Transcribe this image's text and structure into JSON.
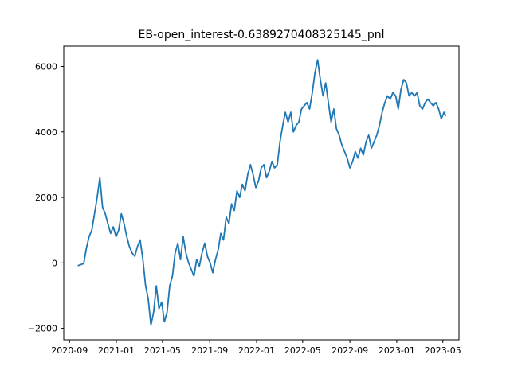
{
  "chart_data": {
    "type": "line",
    "title": "EB-open_interest-0.6389270408325145_pnl",
    "xlabel": "",
    "ylabel": "",
    "x_type": "date",
    "xlim": [
      "2020-08-17",
      "2023-06-12"
    ],
    "ylim": [
      -2350,
      6620
    ],
    "grid": false,
    "line_color": "#1f77b4",
    "x_ticks": [
      {
        "date": "2020-09-01",
        "label": "2020-09"
      },
      {
        "date": "2021-01-01",
        "label": "2021-01"
      },
      {
        "date": "2021-05-01",
        "label": "2021-05"
      },
      {
        "date": "2021-09-01",
        "label": "2021-09"
      },
      {
        "date": "2022-01-01",
        "label": "2022-01"
      },
      {
        "date": "2022-05-01",
        "label": "2022-05"
      },
      {
        "date": "2022-09-01",
        "label": "2022-09"
      },
      {
        "date": "2023-01-01",
        "label": "2023-01"
      },
      {
        "date": "2023-05-01",
        "label": "2023-05"
      }
    ],
    "y_ticks": [
      {
        "value": -2000,
        "label": "−2000"
      },
      {
        "value": 0,
        "label": "0"
      },
      {
        "value": 2000,
        "label": "2000"
      },
      {
        "value": 4000,
        "label": "4000"
      },
      {
        "value": 6000,
        "label": "6000"
      }
    ],
    "series": [
      {
        "points": [
          [
            "2020-09-24",
            -80
          ],
          [
            "2020-10-01",
            -50
          ],
          [
            "2020-10-08",
            -20
          ],
          [
            "2020-10-15",
            450
          ],
          [
            "2020-10-22",
            800
          ],
          [
            "2020-10-29",
            1000
          ],
          [
            "2020-11-05",
            1500
          ],
          [
            "2020-11-12",
            2000
          ],
          [
            "2020-11-19",
            2600
          ],
          [
            "2020-11-26",
            1700
          ],
          [
            "2020-12-03",
            1500
          ],
          [
            "2020-12-10",
            1200
          ],
          [
            "2020-12-17",
            900
          ],
          [
            "2020-12-24",
            1100
          ],
          [
            "2020-12-31",
            800
          ],
          [
            "2021-01-07",
            1000
          ],
          [
            "2021-01-14",
            1500
          ],
          [
            "2021-01-21",
            1200
          ],
          [
            "2021-01-28",
            800
          ],
          [
            "2021-02-04",
            500
          ],
          [
            "2021-02-11",
            300
          ],
          [
            "2021-02-18",
            200
          ],
          [
            "2021-02-25",
            500
          ],
          [
            "2021-03-04",
            700
          ],
          [
            "2021-03-11",
            100
          ],
          [
            "2021-03-18",
            -700
          ],
          [
            "2021-03-25",
            -1100
          ],
          [
            "2021-04-01",
            -1900
          ],
          [
            "2021-04-08",
            -1500
          ],
          [
            "2021-04-15",
            -700
          ],
          [
            "2021-04-22",
            -1400
          ],
          [
            "2021-04-29",
            -1200
          ],
          [
            "2021-05-06",
            -1800
          ],
          [
            "2021-05-13",
            -1500
          ],
          [
            "2021-05-20",
            -700
          ],
          [
            "2021-05-27",
            -400
          ],
          [
            "2021-06-03",
            300
          ],
          [
            "2021-06-10",
            600
          ],
          [
            "2021-06-17",
            100
          ],
          [
            "2021-06-24",
            800
          ],
          [
            "2021-07-01",
            300
          ],
          [
            "2021-07-08",
            0
          ],
          [
            "2021-07-15",
            -200
          ],
          [
            "2021-07-22",
            -400
          ],
          [
            "2021-07-29",
            100
          ],
          [
            "2021-08-05",
            -100
          ],
          [
            "2021-08-12",
            300
          ],
          [
            "2021-08-19",
            600
          ],
          [
            "2021-08-26",
            200
          ],
          [
            "2021-09-02",
            0
          ],
          [
            "2021-09-09",
            -300
          ],
          [
            "2021-09-16",
            100
          ],
          [
            "2021-09-23",
            400
          ],
          [
            "2021-09-30",
            900
          ],
          [
            "2021-10-07",
            700
          ],
          [
            "2021-10-14",
            1400
          ],
          [
            "2021-10-21",
            1200
          ],
          [
            "2021-10-28",
            1800
          ],
          [
            "2021-11-04",
            1600
          ],
          [
            "2021-11-11",
            2200
          ],
          [
            "2021-11-18",
            2000
          ],
          [
            "2021-11-25",
            2400
          ],
          [
            "2021-12-02",
            2200
          ],
          [
            "2021-12-09",
            2700
          ],
          [
            "2021-12-16",
            3000
          ],
          [
            "2021-12-23",
            2700
          ],
          [
            "2021-12-30",
            2300
          ],
          [
            "2022-01-06",
            2500
          ],
          [
            "2022-01-13",
            2900
          ],
          [
            "2022-01-20",
            3000
          ],
          [
            "2022-01-27",
            2600
          ],
          [
            "2022-02-03",
            2800
          ],
          [
            "2022-02-10",
            3100
          ],
          [
            "2022-02-17",
            2900
          ],
          [
            "2022-02-24",
            3000
          ],
          [
            "2022-03-03",
            3700
          ],
          [
            "2022-03-10",
            4200
          ],
          [
            "2022-03-17",
            4600
          ],
          [
            "2022-03-24",
            4300
          ],
          [
            "2022-03-31",
            4600
          ],
          [
            "2022-04-07",
            4000
          ],
          [
            "2022-04-14",
            4200
          ],
          [
            "2022-04-21",
            4300
          ],
          [
            "2022-04-28",
            4700
          ],
          [
            "2022-05-05",
            4800
          ],
          [
            "2022-05-12",
            4900
          ],
          [
            "2022-05-19",
            4700
          ],
          [
            "2022-05-26",
            5200
          ],
          [
            "2022-06-02",
            5800
          ],
          [
            "2022-06-09",
            6200
          ],
          [
            "2022-06-16",
            5600
          ],
          [
            "2022-06-23",
            5100
          ],
          [
            "2022-06-30",
            5500
          ],
          [
            "2022-07-07",
            4900
          ],
          [
            "2022-07-14",
            4300
          ],
          [
            "2022-07-21",
            4700
          ],
          [
            "2022-07-28",
            4100
          ],
          [
            "2022-08-04",
            3900
          ],
          [
            "2022-08-11",
            3600
          ],
          [
            "2022-08-18",
            3400
          ],
          [
            "2022-08-25",
            3200
          ],
          [
            "2022-09-01",
            2900
          ],
          [
            "2022-09-08",
            3100
          ],
          [
            "2022-09-15",
            3400
          ],
          [
            "2022-09-22",
            3200
          ],
          [
            "2022-09-29",
            3500
          ],
          [
            "2022-10-06",
            3300
          ],
          [
            "2022-10-13",
            3700
          ],
          [
            "2022-10-20",
            3900
          ],
          [
            "2022-10-27",
            3500
          ],
          [
            "2022-11-03",
            3700
          ],
          [
            "2022-11-10",
            3900
          ],
          [
            "2022-11-17",
            4200
          ],
          [
            "2022-11-24",
            4600
          ],
          [
            "2022-12-01",
            4900
          ],
          [
            "2022-12-08",
            5100
          ],
          [
            "2022-12-15",
            5000
          ],
          [
            "2022-12-22",
            5200
          ],
          [
            "2022-12-29",
            5100
          ],
          [
            "2023-01-05",
            4700
          ],
          [
            "2023-01-12",
            5300
          ],
          [
            "2023-01-19",
            5600
          ],
          [
            "2023-01-26",
            5500
          ],
          [
            "2023-02-02",
            5100
          ],
          [
            "2023-02-09",
            5200
          ],
          [
            "2023-02-16",
            5100
          ],
          [
            "2023-02-23",
            5200
          ],
          [
            "2023-03-02",
            4800
          ],
          [
            "2023-03-09",
            4700
          ],
          [
            "2023-03-16",
            4900
          ],
          [
            "2023-03-23",
            5000
          ],
          [
            "2023-03-30",
            4900
          ],
          [
            "2023-04-06",
            4800
          ],
          [
            "2023-04-13",
            4900
          ],
          [
            "2023-04-20",
            4700
          ],
          [
            "2023-04-27",
            4400
          ],
          [
            "2023-05-04",
            4600
          ],
          [
            "2023-05-08",
            4500
          ]
        ]
      }
    ]
  }
}
